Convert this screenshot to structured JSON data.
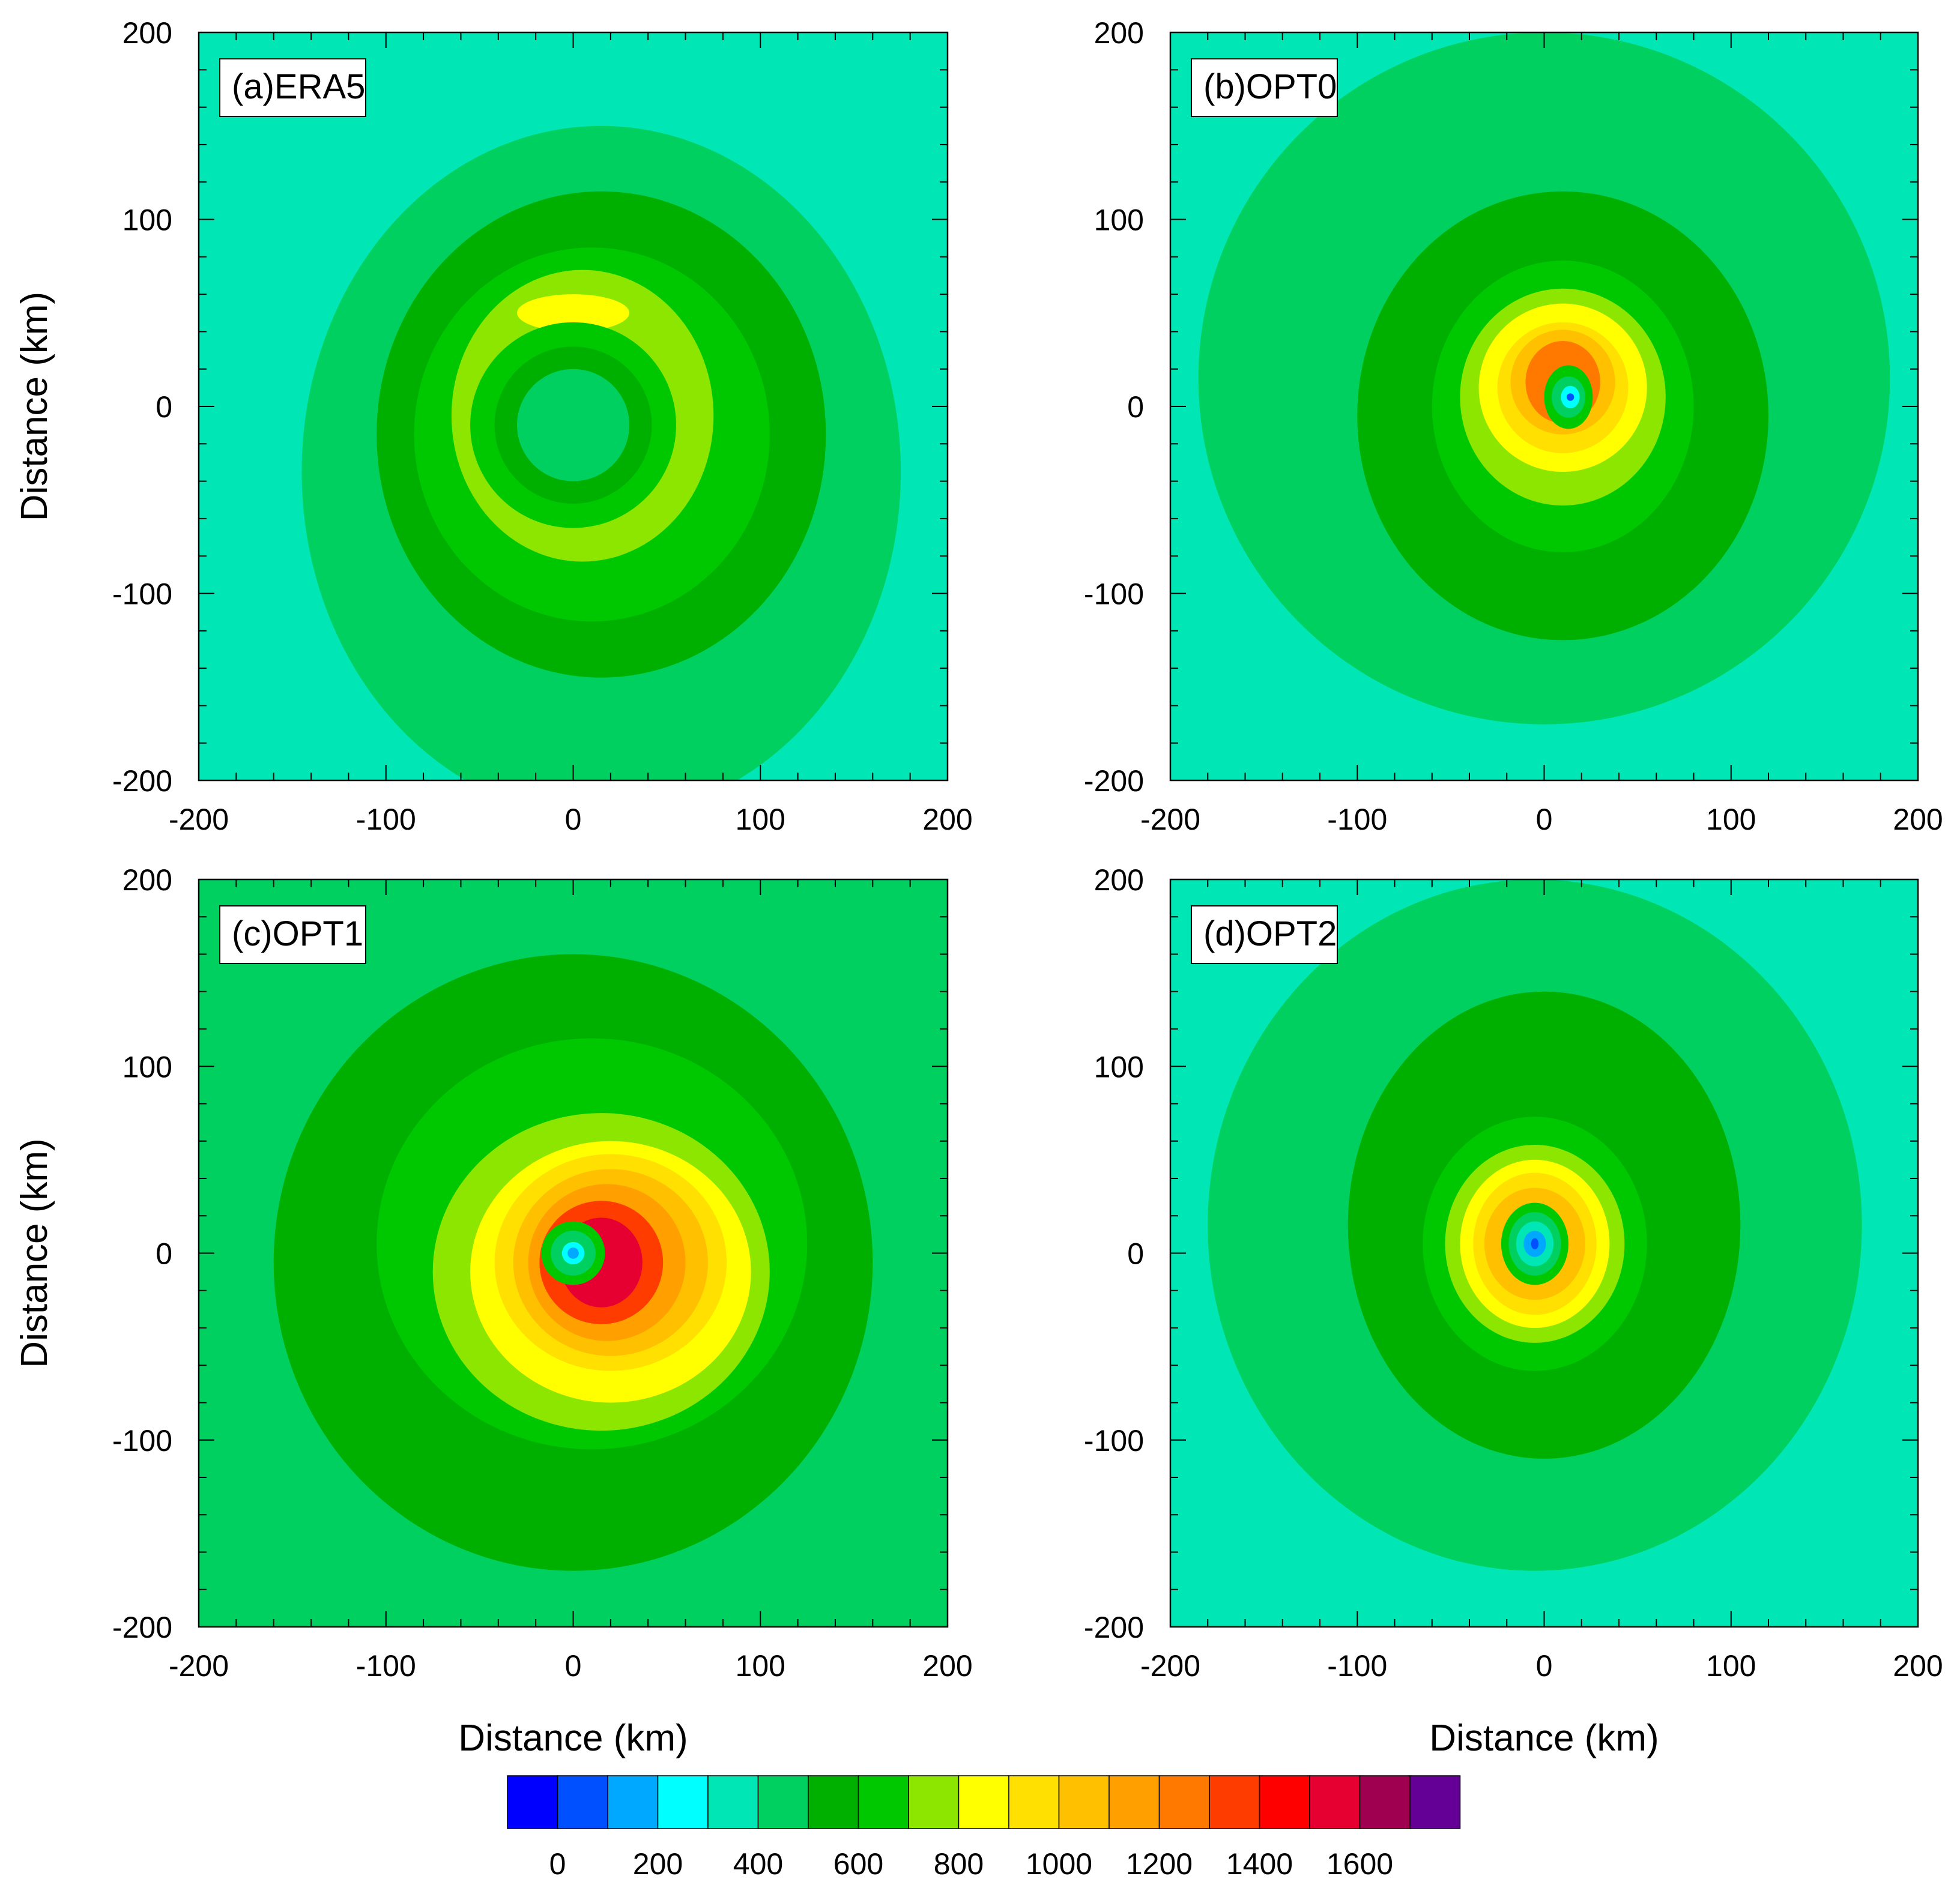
{
  "figure": {
    "x_label": "Distance (km)",
    "y_label": "Distance (km)"
  },
  "chart_data": [
    {
      "type": "heatmap",
      "panel_label": "(a)ERA5",
      "xlabel": "",
      "ylabel": "Distance (km)",
      "xlim": [
        -200,
        200
      ],
      "ylim": [
        -200,
        200
      ],
      "x_ticks": [
        "-200",
        "-100",
        "0",
        "100",
        "200"
      ],
      "y_ticks": [
        "200",
        "100",
        "0",
        "-100",
        "-200"
      ],
      "center": [
        0,
        -10
      ],
      "field": [
        {
          "level": 350,
          "rx": 200,
          "ry": 200,
          "dx": 0,
          "dy": 0
        },
        {
          "level": 450,
          "rx": 160,
          "ry": 185,
          "dx": 15,
          "dy": -25
        },
        {
          "level": 550,
          "rx": 120,
          "ry": 130,
          "dx": 15,
          "dy": -5
        },
        {
          "level": 650,
          "rx": 95,
          "ry": 100,
          "dx": 10,
          "dy": -5
        },
        {
          "level": 750,
          "rx": 70,
          "ry": 78,
          "dx": 5,
          "dy": 5
        },
        {
          "level": 850,
          "rx": 30,
          "ry": 10,
          "dx": 0,
          "dy": 60
        },
        {
          "level": 650,
          "rx": 55,
          "ry": 55,
          "dx": 0,
          "dy": 0
        },
        {
          "level": 550,
          "rx": 42,
          "ry": 42,
          "dx": 0,
          "dy": 0
        },
        {
          "level": 450,
          "rx": 30,
          "ry": 30,
          "dx": 0,
          "dy": 0
        }
      ]
    },
    {
      "type": "heatmap",
      "panel_label": "(b)OPT0",
      "xlabel": "",
      "ylabel": "",
      "xlim": [
        -200,
        200
      ],
      "ylim": [
        -200,
        200
      ],
      "x_ticks": [
        "-200",
        "-100",
        "0",
        "100",
        "200"
      ],
      "y_ticks": [
        "200",
        "100",
        "0",
        "-100",
        "-200"
      ],
      "center": [
        10,
        5
      ],
      "field": [
        {
          "level": 350,
          "rx": 200,
          "ry": 200,
          "dx": 0,
          "dy": 0
        },
        {
          "level": 450,
          "rx": 185,
          "ry": 185,
          "dx": -10,
          "dy": 10
        },
        {
          "level": 550,
          "rx": 110,
          "ry": 120,
          "dx": 0,
          "dy": -10
        },
        {
          "level": 650,
          "rx": 70,
          "ry": 78,
          "dx": 0,
          "dy": -5
        },
        {
          "level": 750,
          "rx": 55,
          "ry": 58,
          "dx": 0,
          "dy": 0
        },
        {
          "level": 850,
          "rx": 45,
          "ry": 45,
          "dx": 0,
          "dy": 5
        },
        {
          "level": 950,
          "rx": 35,
          "ry": 35,
          "dx": 0,
          "dy": 5
        },
        {
          "level": 1050,
          "rx": 28,
          "ry": 28,
          "dx": 0,
          "dy": 8
        },
        {
          "level": 1250,
          "rx": 20,
          "ry": 22,
          "dx": 0,
          "dy": 8
        },
        {
          "level": 650,
          "rx": 13,
          "ry": 17,
          "dx": 3,
          "dy": 0
        },
        {
          "level": 450,
          "rx": 9,
          "ry": 11,
          "dx": 3,
          "dy": 0
        },
        {
          "level": 250,
          "rx": 5,
          "ry": 6,
          "dx": 4,
          "dy": 0
        },
        {
          "level": 50,
          "rx": 2,
          "ry": 2,
          "dx": 4,
          "dy": 0
        }
      ]
    },
    {
      "type": "heatmap",
      "panel_label": "(c)OPT1",
      "xlabel": "Distance (km)",
      "ylabel": "Distance (km)",
      "xlim": [
        -200,
        200
      ],
      "ylim": [
        -200,
        200
      ],
      "x_ticks": [
        "-200",
        "-100",
        "0",
        "100",
        "200"
      ],
      "y_ticks": [
        "200",
        "100",
        "0",
        "-100",
        "-200"
      ],
      "center": [
        0,
        0
      ],
      "field": [
        {
          "level": 450,
          "rx": 200,
          "ry": 200,
          "dx": 0,
          "dy": 0
        },
        {
          "level": 550,
          "rx": 160,
          "ry": 165,
          "dx": 0,
          "dy": -5
        },
        {
          "level": 650,
          "rx": 115,
          "ry": 110,
          "dx": 10,
          "dy": 5
        },
        {
          "level": 750,
          "rx": 90,
          "ry": 85,
          "dx": 15,
          "dy": -10
        },
        {
          "level": 850,
          "rx": 75,
          "ry": 70,
          "dx": 20,
          "dy": -10
        },
        {
          "level": 950,
          "rx": 62,
          "ry": 58,
          "dx": 20,
          "dy": -5
        },
        {
          "level": 1050,
          "rx": 52,
          "ry": 50,
          "dx": 20,
          "dy": -5
        },
        {
          "level": 1150,
          "rx": 42,
          "ry": 42,
          "dx": 18,
          "dy": -5
        },
        {
          "level": 1350,
          "rx": 33,
          "ry": 33,
          "dx": 15,
          "dy": -5
        },
        {
          "level": 1550,
          "rx": 22,
          "ry": 24,
          "dx": 15,
          "dy": -5
        },
        {
          "level": 650,
          "rx": 17,
          "ry": 17,
          "dx": 0,
          "dy": 0
        },
        {
          "level": 450,
          "rx": 12,
          "ry": 12,
          "dx": 0,
          "dy": 0
        },
        {
          "level": 250,
          "rx": 6,
          "ry": 6,
          "dx": 0,
          "dy": 0
        },
        {
          "level": 150,
          "rx": 3,
          "ry": 3,
          "dx": 0,
          "dy": 0
        }
      ]
    },
    {
      "type": "heatmap",
      "panel_label": "(d)OPT2",
      "xlabel": "Distance (km)",
      "ylabel": "",
      "xlim": [
        -200,
        200
      ],
      "ylim": [
        -200,
        200
      ],
      "x_ticks": [
        "-200",
        "-100",
        "0",
        "100",
        "200"
      ],
      "y_ticks": [
        "200",
        "100",
        "0",
        "-100",
        "-200"
      ],
      "center": [
        -5,
        5
      ],
      "field": [
        {
          "level": 350,
          "rx": 200,
          "ry": 200,
          "dx": 0,
          "dy": 0
        },
        {
          "level": 450,
          "rx": 175,
          "ry": 185,
          "dx": 0,
          "dy": 10
        },
        {
          "level": 550,
          "rx": 105,
          "ry": 125,
          "dx": 5,
          "dy": 10
        },
        {
          "level": 650,
          "rx": 60,
          "ry": 68,
          "dx": 0,
          "dy": 0
        },
        {
          "level": 750,
          "rx": 48,
          "ry": 53,
          "dx": 0,
          "dy": 0
        },
        {
          "level": 850,
          "rx": 40,
          "ry": 45,
          "dx": 0,
          "dy": 0
        },
        {
          "level": 950,
          "rx": 33,
          "ry": 38,
          "dx": 0,
          "dy": 0
        },
        {
          "level": 1050,
          "rx": 27,
          "ry": 30,
          "dx": 0,
          "dy": 0
        },
        {
          "level": 650,
          "rx": 18,
          "ry": 22,
          "dx": 0,
          "dy": 0
        },
        {
          "level": 450,
          "rx": 14,
          "ry": 17,
          "dx": 0,
          "dy": 0
        },
        {
          "level": 350,
          "rx": 10,
          "ry": 12,
          "dx": 0,
          "dy": 0
        },
        {
          "level": 150,
          "rx": 6,
          "ry": 7,
          "dx": 0,
          "dy": 0
        },
        {
          "level": 50,
          "rx": 2,
          "ry": 3,
          "dx": 0,
          "dy": 0
        }
      ]
    }
  ],
  "colorbar": {
    "levels": [
      -100,
      0,
      100,
      200,
      300,
      400,
      500,
      600,
      700,
      800,
      900,
      1000,
      1100,
      1200,
      1300,
      1400,
      1500,
      1600,
      1700,
      1800
    ],
    "colors": [
      "#0000ff",
      "#0050ff",
      "#00a8ff",
      "#00ffff",
      "#00e6b4",
      "#00d060",
      "#00b000",
      "#00c800",
      "#8ce600",
      "#ffff00",
      "#ffe000",
      "#ffc000",
      "#ffa000",
      "#ff7800",
      "#ff3c00",
      "#ff0000",
      "#e60032",
      "#a00050",
      "#640096"
    ],
    "labels": [
      "0",
      "200",
      "400",
      "600",
      "800",
      "1000",
      "1200",
      "1400",
      "1600"
    ]
  }
}
